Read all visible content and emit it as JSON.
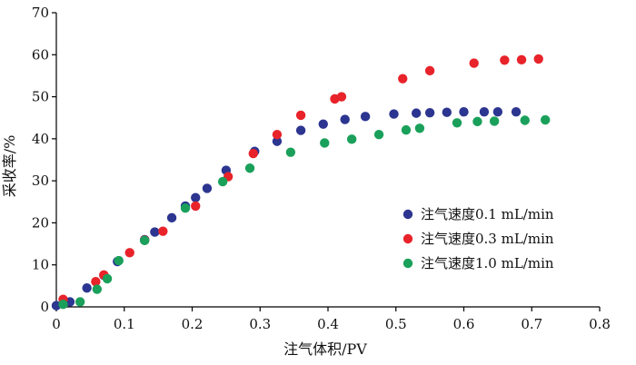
{
  "chart_data": {
    "type": "scatter",
    "title": "",
    "xlabel": "注气体积/PV",
    "ylabel": "采收率/%",
    "xlim": [
      0,
      0.8
    ],
    "ylim": [
      0,
      70
    ],
    "xticks": [
      0,
      0.1,
      0.2,
      0.3,
      0.4,
      0.5,
      0.6,
      0.7,
      0.8
    ],
    "yticks": [
      0,
      10,
      20,
      30,
      40,
      50,
      60,
      70
    ],
    "xtick_labels": [
      "0",
      "0.1",
      "0.2",
      "0.3",
      "0.4",
      "0.5",
      "0.6",
      "0.7",
      "0.8"
    ],
    "ytick_labels": [
      "0",
      "10",
      "20",
      "30",
      "40",
      "50",
      "60",
      "70"
    ],
    "grid": false,
    "legend_position": "right-middle",
    "series": [
      {
        "name": "注气速度0.1 mL/min",
        "color": "#2c3590",
        "points": [
          [
            0.0,
            0.3
          ],
          [
            0.02,
            1.2
          ],
          [
            0.045,
            4.5
          ],
          [
            0.07,
            7.5
          ],
          [
            0.09,
            10.8
          ],
          [
            0.13,
            16.0
          ],
          [
            0.145,
            17.8
          ],
          [
            0.17,
            21.2
          ],
          [
            0.19,
            24.0
          ],
          [
            0.205,
            26.0
          ],
          [
            0.222,
            28.2
          ],
          [
            0.25,
            32.5
          ],
          [
            0.292,
            37.0
          ],
          [
            0.325,
            39.4
          ],
          [
            0.36,
            42.0
          ],
          [
            0.393,
            43.5
          ],
          [
            0.425,
            44.6
          ],
          [
            0.455,
            45.3
          ],
          [
            0.497,
            45.9
          ],
          [
            0.53,
            46.1
          ],
          [
            0.55,
            46.2
          ],
          [
            0.575,
            46.3
          ],
          [
            0.6,
            46.4
          ],
          [
            0.63,
            46.4
          ],
          [
            0.65,
            46.4
          ],
          [
            0.677,
            46.4
          ]
        ]
      },
      {
        "name": "注气速度0.3 mL/min",
        "color": "#e8232a",
        "points": [
          [
            0.01,
            1.8
          ],
          [
            0.058,
            6.0
          ],
          [
            0.07,
            7.6
          ],
          [
            0.108,
            12.9
          ],
          [
            0.13,
            15.9
          ],
          [
            0.157,
            18.0
          ],
          [
            0.205,
            24.0
          ],
          [
            0.253,
            31.0
          ],
          [
            0.29,
            36.5
          ],
          [
            0.325,
            41.0
          ],
          [
            0.36,
            45.6
          ],
          [
            0.41,
            49.5
          ],
          [
            0.42,
            50.0
          ],
          [
            0.51,
            54.3
          ],
          [
            0.55,
            56.2
          ],
          [
            0.615,
            58.0
          ],
          [
            0.66,
            58.7
          ],
          [
            0.685,
            58.8
          ],
          [
            0.71,
            59.0
          ]
        ]
      },
      {
        "name": "注气速度1.0 mL/min",
        "color": "#1aa05a",
        "points": [
          [
            0.01,
            0.6
          ],
          [
            0.035,
            1.2
          ],
          [
            0.06,
            4.2
          ],
          [
            0.075,
            6.7
          ],
          [
            0.092,
            11.0
          ],
          [
            0.13,
            15.8
          ],
          [
            0.19,
            23.5
          ],
          [
            0.245,
            29.8
          ],
          [
            0.285,
            33.0
          ],
          [
            0.345,
            36.8
          ],
          [
            0.395,
            39.0
          ],
          [
            0.435,
            39.9
          ],
          [
            0.475,
            41.0
          ],
          [
            0.515,
            42.1
          ],
          [
            0.535,
            42.5
          ],
          [
            0.59,
            43.8
          ],
          [
            0.62,
            44.1
          ],
          [
            0.645,
            44.2
          ],
          [
            0.69,
            44.4
          ],
          [
            0.72,
            44.5
          ]
        ]
      }
    ]
  }
}
